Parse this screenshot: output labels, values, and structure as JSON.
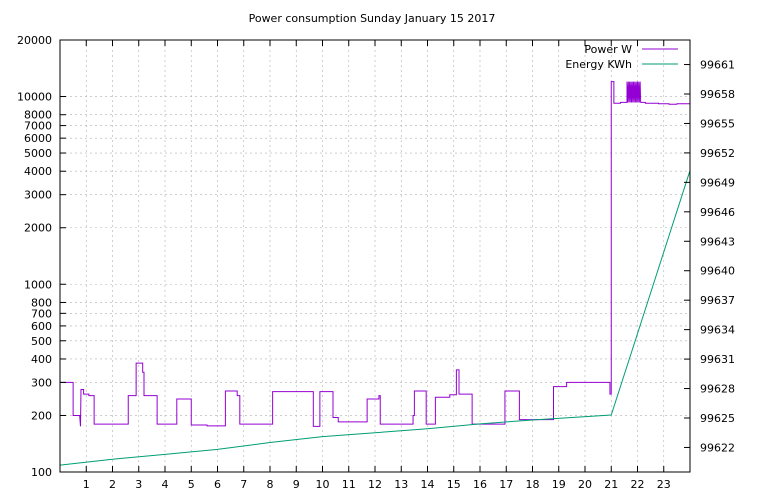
{
  "chart_data": {
    "type": "line",
    "title": "Power consumption Sunday January 15 2017",
    "xlabel": "",
    "ylabel": "",
    "x_range": [
      0,
      24
    ],
    "x_ticks": [
      "1",
      "2",
      "3",
      "4",
      "5",
      "6",
      "7",
      "8",
      "9",
      "10",
      "11",
      "12",
      "13",
      "14",
      "15",
      "16",
      "17",
      "18",
      "19",
      "20",
      "21",
      "22",
      "23"
    ],
    "y_left": {
      "scale": "log",
      "range": [
        100,
        20000
      ],
      "ticks": [
        "100",
        "200",
        "300",
        "400",
        "500",
        "600",
        "700",
        "800",
        "1000",
        "2000",
        "3000",
        "4000",
        "5000",
        "6000",
        "7000",
        "8000",
        "10000",
        "20000"
      ]
    },
    "y_right": {
      "scale": "linear",
      "range": [
        99619.5,
        99663.5
      ],
      "ticks": [
        "99622",
        "99625",
        "99628",
        "99631",
        "99634",
        "99637",
        "99640",
        "99643",
        "99646",
        "99649",
        "99652",
        "99655",
        "99658",
        "99661"
      ]
    },
    "grid": true,
    "legend_position": "top-right",
    "series": [
      {
        "name": "Power W",
        "axis": "left",
        "color": "#9400d3",
        "points": [
          [
            0.0,
            300
          ],
          [
            0.5,
            300
          ],
          [
            0.5,
            200
          ],
          [
            0.75,
            200
          ],
          [
            0.78,
            175
          ],
          [
            0.8,
            275
          ],
          [
            0.9,
            275
          ],
          [
            0.9,
            260
          ],
          [
            1.1,
            260
          ],
          [
            1.1,
            255
          ],
          [
            1.3,
            255
          ],
          [
            1.3,
            180
          ],
          [
            2.6,
            180
          ],
          [
            2.6,
            255
          ],
          [
            2.9,
            255
          ],
          [
            2.9,
            380
          ],
          [
            3.15,
            380
          ],
          [
            3.15,
            340
          ],
          [
            3.2,
            340
          ],
          [
            3.2,
            255
          ],
          [
            3.7,
            255
          ],
          [
            3.7,
            180
          ],
          [
            4.45,
            180
          ],
          [
            4.45,
            245
          ],
          [
            5.0,
            245
          ],
          [
            5.0,
            178
          ],
          [
            5.6,
            178
          ],
          [
            5.6,
            176
          ],
          [
            6.3,
            176
          ],
          [
            6.3,
            270
          ],
          [
            6.75,
            270
          ],
          [
            6.75,
            255
          ],
          [
            6.85,
            255
          ],
          [
            6.85,
            180
          ],
          [
            8.1,
            180
          ],
          [
            8.1,
            268
          ],
          [
            9.65,
            268
          ],
          [
            9.65,
            175
          ],
          [
            9.9,
            175
          ],
          [
            9.9,
            268
          ],
          [
            10.4,
            268
          ],
          [
            10.4,
            195
          ],
          [
            10.6,
            195
          ],
          [
            10.6,
            185
          ],
          [
            11.7,
            185
          ],
          [
            11.7,
            245
          ],
          [
            12.15,
            245
          ],
          [
            12.15,
            255
          ],
          [
            12.2,
            255
          ],
          [
            12.2,
            180
          ],
          [
            13.45,
            180
          ],
          [
            13.45,
            200
          ],
          [
            13.5,
            200
          ],
          [
            13.5,
            270
          ],
          [
            13.95,
            270
          ],
          [
            13.95,
            180
          ],
          [
            14.3,
            180
          ],
          [
            14.3,
            250
          ],
          [
            14.85,
            250
          ],
          [
            14.85,
            258
          ],
          [
            15.1,
            258
          ],
          [
            15.1,
            350
          ],
          [
            15.2,
            350
          ],
          [
            15.2,
            260
          ],
          [
            15.7,
            260
          ],
          [
            15.7,
            180
          ],
          [
            16.95,
            180
          ],
          [
            16.95,
            270
          ],
          [
            17.5,
            270
          ],
          [
            17.5,
            190
          ],
          [
            18.8,
            190
          ],
          [
            18.8,
            285
          ],
          [
            19.3,
            285
          ],
          [
            19.3,
            300
          ],
          [
            20.95,
            300
          ],
          [
            20.95,
            260
          ],
          [
            21.0,
            260
          ],
          [
            21.0,
            12000
          ],
          [
            21.1,
            12000
          ],
          [
            21.1,
            9200
          ],
          [
            21.35,
            9200
          ],
          [
            21.35,
            9300
          ],
          [
            21.6,
            9300
          ],
          [
            21.6,
            12000
          ],
          [
            21.62,
            9300
          ],
          [
            21.65,
            12000
          ],
          [
            21.67,
            9300
          ],
          [
            21.7,
            12000
          ],
          [
            21.72,
            9300
          ],
          [
            21.75,
            12000
          ],
          [
            21.77,
            9300
          ],
          [
            21.8,
            12000
          ],
          [
            21.82,
            9300
          ],
          [
            21.85,
            12000
          ],
          [
            21.87,
            9300
          ],
          [
            21.9,
            12000
          ],
          [
            21.92,
            9300
          ],
          [
            21.95,
            12000
          ],
          [
            21.97,
            9300
          ],
          [
            22.0,
            12000
          ],
          [
            22.02,
            9300
          ],
          [
            22.05,
            12000
          ],
          [
            22.07,
            9300
          ],
          [
            22.1,
            12000
          ],
          [
            22.12,
            9300
          ],
          [
            22.15,
            9300
          ],
          [
            22.3,
            9300
          ],
          [
            22.3,
            9200
          ],
          [
            22.8,
            9200
          ],
          [
            22.8,
            9150
          ],
          [
            23.2,
            9150
          ],
          [
            23.2,
            9100
          ],
          [
            23.5,
            9100
          ],
          [
            23.5,
            9150
          ],
          [
            24.0,
            9150
          ]
        ]
      },
      {
        "name": "Energy KWh",
        "axis": "right",
        "color": "#009e73",
        "points": [
          [
            0.0,
            99620.2
          ],
          [
            2.0,
            99620.8
          ],
          [
            4.0,
            99621.3
          ],
          [
            6.0,
            99621.8
          ],
          [
            8.0,
            99622.5
          ],
          [
            10.0,
            99623.1
          ],
          [
            12.0,
            99623.5
          ],
          [
            14.0,
            99623.9
          ],
          [
            16.0,
            99624.4
          ],
          [
            18.0,
            99624.8
          ],
          [
            21.0,
            99625.3
          ],
          [
            24.0,
            99650.2
          ]
        ]
      }
    ]
  }
}
